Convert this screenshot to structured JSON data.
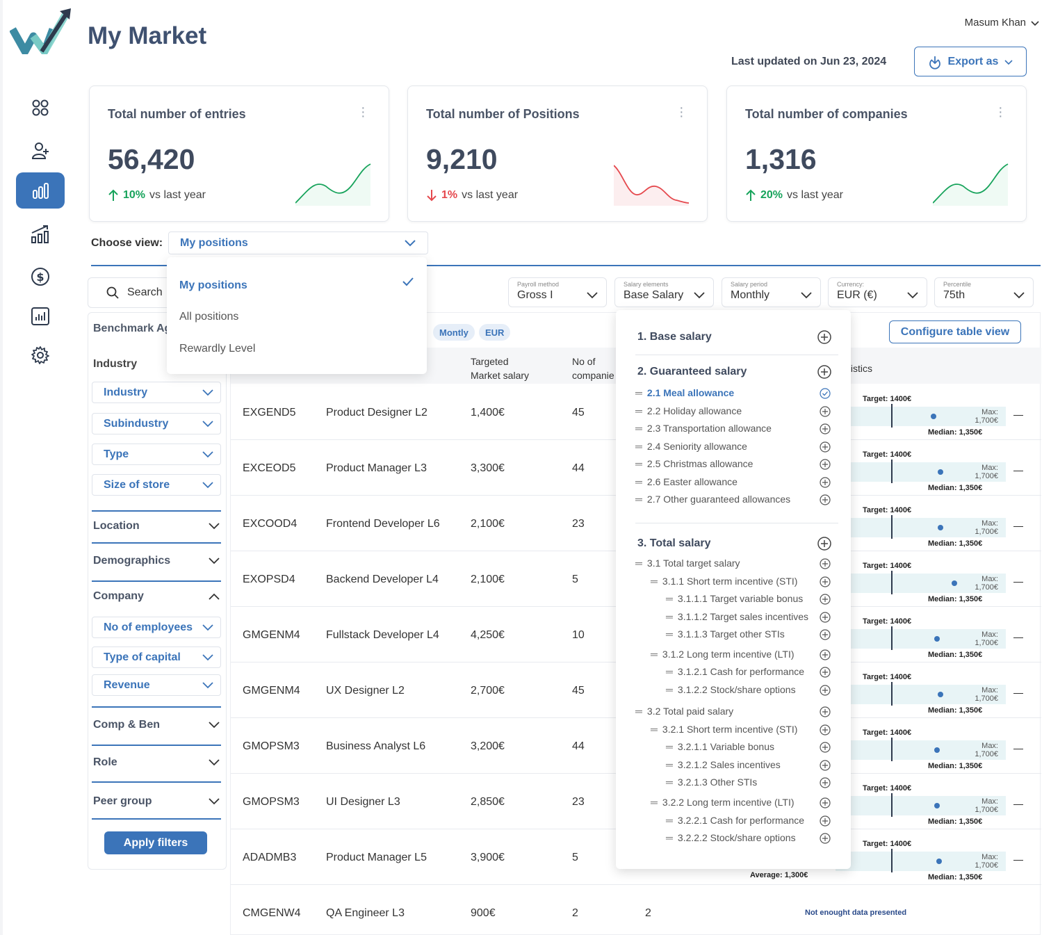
{
  "user": {
    "name": "Masum Khan"
  },
  "page": {
    "title": "My Market",
    "updated": "Last updated on Jun 23, 2024",
    "export_label": "Export as"
  },
  "stats": [
    {
      "title": "Total number of entries",
      "value": "56,420",
      "pct": "10%",
      "suffix": "vs last year",
      "direction": "up"
    },
    {
      "title": "Total number of Positions",
      "value": "9,210",
      "pct": "1%",
      "suffix": "vs last year",
      "direction": "down"
    },
    {
      "title": "Total number of companies",
      "value": "1,316",
      "pct": "20%",
      "suffix": "vs last year",
      "direction": "up"
    }
  ],
  "view": {
    "label": "Choose view:",
    "selected": "My positions",
    "options": [
      "My positions",
      "All positions",
      "Rewardly Level"
    ]
  },
  "search": {
    "label": "Search"
  },
  "filters": {
    "benchmark": "Benchmark Ag",
    "industry_label": "Industry",
    "industry_selects": [
      "Industry",
      "Subindustry",
      "Type",
      "Size of store"
    ],
    "sections": [
      "Location",
      "Demographics",
      "Company"
    ],
    "company_selects": [
      "No of employees",
      "Type of capital",
      "Revenue"
    ],
    "more_sections": [
      "Comp & Ben",
      "Role",
      "Peer group"
    ],
    "apply": "Apply filters"
  },
  "top_filters": [
    {
      "label": "Payroll method",
      "value": "Gross I"
    },
    {
      "label": "Salary elements",
      "value": "Base Salary"
    },
    {
      "label": "Salary period",
      "value": "Monthly"
    },
    {
      "label": "Currency:",
      "value": "EUR (€)"
    },
    {
      "label": "Percentile",
      "value": "75th"
    }
  ],
  "chips": [
    "Montly",
    "EUR"
  ],
  "configure": "Configure table view",
  "table": {
    "headers": {
      "targeted": "Targeted",
      "market_salary": "Market salary",
      "no_of": "No of",
      "companies": "companie",
      "statistics": "tistics"
    },
    "rows": [
      {
        "code": "EXGEND5",
        "position": "Product Designer L2",
        "salary": "1,400€",
        "companies": "45"
      },
      {
        "code": "EXCEOD5",
        "position": "Product Manager L3",
        "salary": "3,300€",
        "companies": "44"
      },
      {
        "code": "EXCOOD4",
        "position": "Frontend Developer L6",
        "salary": "2,100€",
        "companies": "23"
      },
      {
        "code": "EXOPSD4",
        "position": "Backend Developer L4",
        "salary": "2,100€",
        "companies": "5"
      },
      {
        "code": "GMGENM4",
        "position": "Fullstack Developer L4",
        "salary": "4,250€",
        "companies": "10"
      },
      {
        "code": "GMGENM4",
        "position": "UX Designer L2",
        "salary": "2,700€",
        "companies": "45"
      },
      {
        "code": "GMOPSM3",
        "position": "Business Analyst L6",
        "salary": "3,200€",
        "companies": "44"
      },
      {
        "code": "GMOPSM3",
        "position": "UI Designer L3",
        "salary": "2,850€",
        "companies": "23"
      },
      {
        "code": "ADADMB3",
        "position": "Product Manager L5",
        "salary": "3,900€",
        "companies": "5"
      },
      {
        "code": "CMGENW4",
        "position": "QA Engineer L3",
        "salary": "900€",
        "companies": "2",
        "extra": "2"
      }
    ],
    "stat": {
      "target": "Target: 1400€",
      "max_label": "Max:",
      "max_value": "1,700€",
      "median": "Median: 1,350€"
    },
    "dot_positions": [
      0.56,
      0.6,
      0.6,
      0.68,
      0.58,
      0.6,
      0.58,
      0.58,
      0.59
    ],
    "average": "Average: 1,300€",
    "no_data": "Not enought data presented"
  },
  "salary_panel": {
    "h1": "1. Base salary",
    "h2": "2. Guaranteed salary",
    "guaranteed": [
      "2.1 Meal allowance",
      "2.2 Holiday allowance",
      "2.3 Transportation allowance",
      "2.4 Seniority allowance",
      "2.5 Christmas allowance",
      "2.6 Easter allowance",
      "2.7 Other guaranteed allowances"
    ],
    "h3": "3. Total salary",
    "total": [
      {
        "label": "3.1 Total target salary",
        "level": 0
      },
      {
        "label": "3.1.1 Short term incentive (STI)",
        "level": 1
      },
      {
        "label": "3.1.1.1 Target variable bonus",
        "level": 2
      },
      {
        "label": "3.1.1.2 Target sales incentives",
        "level": 2
      },
      {
        "label": "3.1.1.3 Target other STIs",
        "level": 2
      },
      {
        "label": "3.1.2 Long term incentive (LTI)",
        "level": 1
      },
      {
        "label": "3.1.2.1 Cash for performance",
        "level": 2
      },
      {
        "label": "3.1.2.2 Stock/share options",
        "level": 2
      },
      {
        "label": "3.2 Total paid salary",
        "level": 0
      },
      {
        "label": "3.2.1 Short term incentive (STI)",
        "level": 1
      },
      {
        "label": "3.2.1.1 Variable bonus",
        "level": 2
      },
      {
        "label": "3.2.1.2 Sales incentives",
        "level": 2
      },
      {
        "label": "3.2.1.3 Other STIs",
        "level": 2
      },
      {
        "label": "3.2.2 Long term incentive (LTI)",
        "level": 1
      },
      {
        "label": "3.2.2.1 Cash for performance",
        "level": 2
      },
      {
        "label": "3.2.2.2 Stock/share options",
        "level": 2
      }
    ]
  },
  "colors": {
    "accent": "#3b74b9",
    "up": "#17a35b",
    "down": "#e5484d"
  }
}
